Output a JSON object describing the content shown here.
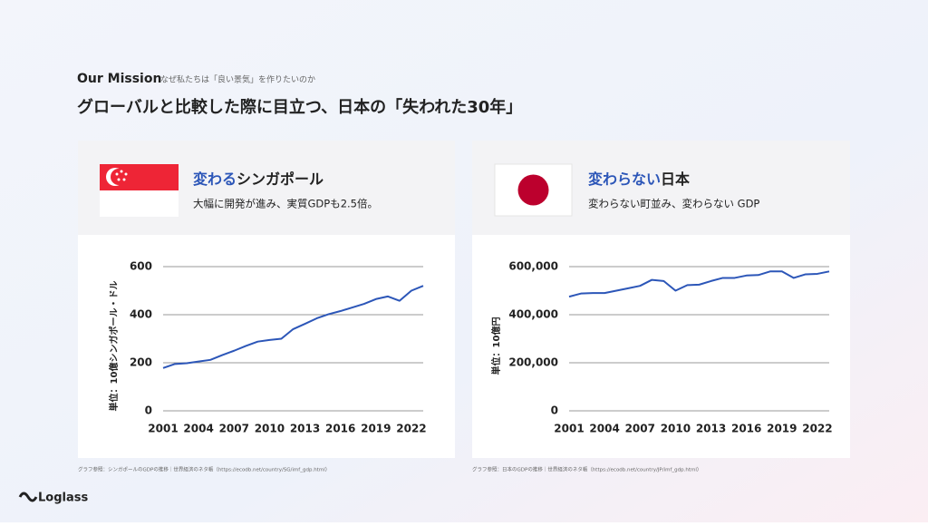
{
  "header": {
    "section": "Our Mission",
    "section_sub": "なぜ私たちは「良い景気」を作りたいのか",
    "title": "グローバルと比較した際に目立つ、日本の「失われた30年」"
  },
  "cards": [
    {
      "title_highlight": "変わる",
      "title_rest": "シンガポール",
      "subtitle": "大幅に開発が進み、実質GDPも2.5倍。",
      "source": "グラフ参照：シンガポールのGDPの推移｜世界経済のネタ帳（https://ecodb.net/country/SG/imf_gdp.html）"
    },
    {
      "title_highlight": "変わらない",
      "title_rest": "日本",
      "subtitle": "変わらない町並み、変わらない GDP",
      "source": "グラフ参照：日本のGDPの推移｜世界経済のネタ帳（https://ecodb.net/country/JP/imf_gdp.html）"
    }
  ],
  "chart_data": [
    {
      "type": "line",
      "y_label": "単位：10億シンガポール・ドル",
      "x": [
        2001,
        2002,
        2003,
        2004,
        2005,
        2006,
        2007,
        2008,
        2009,
        2010,
        2011,
        2012,
        2013,
        2014,
        2015,
        2016,
        2017,
        2018,
        2019,
        2020,
        2021,
        2022,
        2023
      ],
      "values": [
        178,
        195,
        198,
        205,
        212,
        232,
        250,
        270,
        288,
        295,
        300,
        340,
        362,
        385,
        402,
        415,
        430,
        445,
        465,
        476,
        458,
        500,
        520
      ],
      "color": "#2c56b8",
      "xlim": [
        2001,
        2023
      ],
      "xticks": [
        2001,
        2004,
        2007,
        2010,
        2013,
        2016,
        2019,
        2022
      ],
      "ylim": [
        0,
        600
      ],
      "yticks": [
        0,
        200,
        400,
        600
      ],
      "grid": true
    },
    {
      "type": "line",
      "y_label": "単位：10億円",
      "x": [
        2001,
        2002,
        2003,
        2004,
        2005,
        2006,
        2007,
        2008,
        2009,
        2010,
        2011,
        2012,
        2013,
        2014,
        2015,
        2016,
        2017,
        2018,
        2019,
        2020,
        2021,
        2022,
        2023
      ],
      "values": [
        475000,
        488000,
        490000,
        490000,
        500000,
        510000,
        520000,
        545000,
        540000,
        500000,
        523000,
        525000,
        540000,
        553000,
        553000,
        563000,
        565000,
        580000,
        580000,
        553000,
        568000,
        570000,
        580000
      ],
      "color": "#2c56b8",
      "xlim": [
        2001,
        2023
      ],
      "xticks": [
        2001,
        2004,
        2007,
        2010,
        2013,
        2016,
        2019,
        2022
      ],
      "ylim": [
        0,
        600000
      ],
      "yticks": [
        0,
        {
          "value": 200000,
          "label": "200,000"
        },
        {
          "value": 400000,
          "label": "400,000"
        },
        {
          "value": 600000,
          "label": "600,000"
        }
      ],
      "grid": true
    }
  ]
}
